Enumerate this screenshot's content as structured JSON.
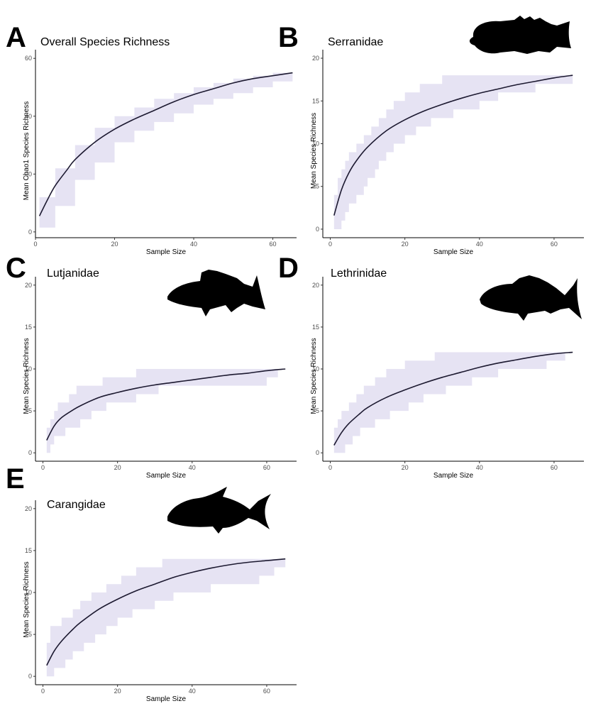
{
  "figure": {
    "colors": {
      "ribbon": "#e6e3f3",
      "line": "#1c1930",
      "axis": "#000000",
      "tick_text": "#4d4d4d"
    },
    "icons": [
      "grouper-silhouette-icon",
      "snapper-silhouette-icon",
      "emperor-silhouette-icon",
      "trevally-silhouette-icon"
    ]
  },
  "chart_data": [
    {
      "panel": "A",
      "title": "Overall  Species Richness",
      "type": "line",
      "xlabel": "Sample Size",
      "ylabel": "Mean Chao1 Species Richness",
      "xlim": [
        0,
        66
      ],
      "ylim": [
        -2,
        63
      ],
      "xticks": [
        0,
        20,
        40,
        60
      ],
      "yticks": [
        0,
        20,
        40,
        60
      ],
      "grid": false,
      "icon": "",
      "series": [
        {
          "values": [
            [
              1,
              5.5
            ],
            [
              3,
              11
            ],
            [
              5,
              16
            ],
            [
              8,
              21.5
            ],
            [
              10,
              25
            ],
            [
              15,
              31
            ],
            [
              20,
              35.5
            ],
            [
              25,
              39
            ],
            [
              30,
              42
            ],
            [
              35,
              45
            ],
            [
              40,
              47.5
            ],
            [
              45,
              49.5
            ],
            [
              50,
              51.5
            ],
            [
              55,
              53
            ],
            [
              60,
              54
            ],
            [
              65,
              55
            ]
          ]
        }
      ],
      "ribbon": {
        "upper": [
          [
            1,
            12
          ],
          [
            5,
            22
          ],
          [
            10,
            30
          ],
          [
            15,
            36
          ],
          [
            20,
            40
          ],
          [
            25,
            43
          ],
          [
            30,
            46
          ],
          [
            35,
            48
          ],
          [
            40,
            50
          ],
          [
            45,
            51.5
          ],
          [
            50,
            53
          ],
          [
            55,
            54
          ],
          [
            60,
            55
          ],
          [
            65,
            56
          ]
        ],
        "lower": [
          [
            1,
            1.5
          ],
          [
            5,
            9
          ],
          [
            10,
            18
          ],
          [
            15,
            24
          ],
          [
            20,
            31
          ],
          [
            25,
            35
          ],
          [
            30,
            38
          ],
          [
            35,
            41
          ],
          [
            40,
            44
          ],
          [
            45,
            46
          ],
          [
            50,
            48
          ],
          [
            55,
            50
          ],
          [
            60,
            52
          ],
          [
            65,
            54
          ]
        ]
      }
    },
    {
      "panel": "B",
      "title": "Serranidae",
      "type": "line",
      "xlabel": "Sample Size",
      "ylabel": "Mean Species Richness",
      "xlim": [
        -2,
        68
      ],
      "ylim": [
        -1,
        21
      ],
      "xticks": [
        0,
        20,
        40,
        60
      ],
      "yticks": [
        0,
        5,
        10,
        15,
        20
      ],
      "grid": false,
      "icon": "grouper-silhouette-icon",
      "series": [
        {
          "values": [
            [
              1,
              1.6
            ],
            [
              3,
              4.6
            ],
            [
              5,
              6.6
            ],
            [
              7,
              8
            ],
            [
              10,
              9.6
            ],
            [
              15,
              11.5
            ],
            [
              20,
              12.8
            ],
            [
              25,
              13.8
            ],
            [
              30,
              14.6
            ],
            [
              35,
              15.3
            ],
            [
              40,
              15.9
            ],
            [
              45,
              16.4
            ],
            [
              50,
              16.9
            ],
            [
              55,
              17.3
            ],
            [
              60,
              17.7
            ],
            [
              65,
              18
            ]
          ]
        }
      ],
      "ribbon": {
        "upper": [
          [
            1,
            4
          ],
          [
            2,
            6
          ],
          [
            3,
            7
          ],
          [
            4,
            8
          ],
          [
            5,
            9
          ],
          [
            7,
            10
          ],
          [
            9,
            11
          ],
          [
            11,
            12
          ],
          [
            13,
            13
          ],
          [
            15,
            14
          ],
          [
            17,
            15
          ],
          [
            20,
            16
          ],
          [
            24,
            17
          ],
          [
            30,
            18
          ],
          [
            65,
            18
          ]
        ],
        "lower": [
          [
            1,
            0
          ],
          [
            3,
            1
          ],
          [
            4,
            2
          ],
          [
            5,
            3
          ],
          [
            7,
            4
          ],
          [
            9,
            5
          ],
          [
            10,
            6
          ],
          [
            12,
            7
          ],
          [
            13,
            8
          ],
          [
            15,
            9
          ],
          [
            17,
            10
          ],
          [
            20,
            11
          ],
          [
            23,
            12
          ],
          [
            27,
            13
          ],
          [
            33,
            14
          ],
          [
            40,
            15
          ],
          [
            45,
            16
          ],
          [
            55,
            17
          ],
          [
            63,
            17
          ],
          [
            65,
            18
          ]
        ]
      }
    },
    {
      "panel": "C",
      "title": "Lutjanidae",
      "type": "line",
      "xlabel": "Sample Size",
      "ylabel": "Mean Species Richness",
      "xlim": [
        -2,
        68
      ],
      "ylim": [
        -1,
        21
      ],
      "xticks": [
        0,
        20,
        40,
        60
      ],
      "yticks": [
        0,
        5,
        10,
        15,
        20
      ],
      "grid": false,
      "icon": "snapper-silhouette-icon",
      "series": [
        {
          "values": [
            [
              1,
              1.5
            ],
            [
              3,
              3.2
            ],
            [
              5,
              4.2
            ],
            [
              8,
              5.1
            ],
            [
              10,
              5.6
            ],
            [
              15,
              6.6
            ],
            [
              20,
              7.2
            ],
            [
              25,
              7.7
            ],
            [
              30,
              8.1
            ],
            [
              35,
              8.4
            ],
            [
              40,
              8.7
            ],
            [
              45,
              9
            ],
            [
              50,
              9.3
            ],
            [
              55,
              9.5
            ],
            [
              60,
              9.8
            ],
            [
              65,
              10
            ]
          ]
        }
      ],
      "ribbon": {
        "upper": [
          [
            1,
            3
          ],
          [
            2,
            4
          ],
          [
            3,
            5
          ],
          [
            4,
            6
          ],
          [
            7,
            7
          ],
          [
            9,
            8
          ],
          [
            16,
            9
          ],
          [
            25,
            10
          ],
          [
            65,
            10
          ]
        ],
        "lower": [
          [
            1,
            0
          ],
          [
            2,
            1
          ],
          [
            3,
            2
          ],
          [
            6,
            3
          ],
          [
            10,
            4
          ],
          [
            13,
            5
          ],
          [
            17,
            6
          ],
          [
            25,
            7
          ],
          [
            31,
            8
          ],
          [
            60,
            9
          ],
          [
            63,
            10
          ],
          [
            65,
            10
          ]
        ]
      }
    },
    {
      "panel": "D",
      "title": "Lethrinidae",
      "type": "line",
      "xlabel": "Sample Size",
      "ylabel": "Mean Species Richness",
      "xlim": [
        -2,
        68
      ],
      "ylim": [
        -1,
        21
      ],
      "xticks": [
        0,
        20,
        40,
        60
      ],
      "yticks": [
        0,
        5,
        10,
        15,
        20
      ],
      "grid": false,
      "icon": "emperor-silhouette-icon",
      "series": [
        {
          "values": [
            [
              1,
              0.9
            ],
            [
              3,
              2.4
            ],
            [
              5,
              3.5
            ],
            [
              8,
              4.7
            ],
            [
              10,
              5.4
            ],
            [
              15,
              6.6
            ],
            [
              20,
              7.5
            ],
            [
              25,
              8.3
            ],
            [
              30,
              9
            ],
            [
              35,
              9.6
            ],
            [
              40,
              10.2
            ],
            [
              45,
              10.7
            ],
            [
              50,
              11.1
            ],
            [
              55,
              11.5
            ],
            [
              60,
              11.8
            ],
            [
              65,
              12
            ]
          ]
        }
      ],
      "ribbon": {
        "upper": [
          [
            1,
            3
          ],
          [
            2,
            4
          ],
          [
            3,
            5
          ],
          [
            5,
            6
          ],
          [
            7,
            7
          ],
          [
            9,
            8
          ],
          [
            12,
            9
          ],
          [
            15,
            10
          ],
          [
            20,
            11
          ],
          [
            28,
            12
          ],
          [
            65,
            12
          ]
        ],
        "lower": [
          [
            1,
            0
          ],
          [
            4,
            1
          ],
          [
            6,
            2
          ],
          [
            8,
            3
          ],
          [
            12,
            4
          ],
          [
            16,
            5
          ],
          [
            21,
            6
          ],
          [
            25,
            7
          ],
          [
            31,
            8
          ],
          [
            38,
            9
          ],
          [
            45,
            10
          ],
          [
            58,
            11
          ],
          [
            63,
            12
          ],
          [
            65,
            12
          ]
        ]
      }
    },
    {
      "panel": "E",
      "title": "Carangidae",
      "type": "line",
      "xlabel": "Sample Size",
      "ylabel": "Mean Species Richness",
      "xlim": [
        -2,
        68
      ],
      "ylim": [
        -1,
        21
      ],
      "xticks": [
        0,
        20,
        40,
        60
      ],
      "yticks": [
        0,
        5,
        10,
        15,
        20
      ],
      "grid": false,
      "icon": "trevally-silhouette-icon",
      "series": [
        {
          "values": [
            [
              1,
              1.3
            ],
            [
              3,
              3
            ],
            [
              5,
              4.2
            ],
            [
              8,
              5.6
            ],
            [
              10,
              6.4
            ],
            [
              15,
              8
            ],
            [
              20,
              9.2
            ],
            [
              25,
              10.2
            ],
            [
              30,
              11
            ],
            [
              35,
              11.8
            ],
            [
              40,
              12.4
            ],
            [
              45,
              12.9
            ],
            [
              50,
              13.3
            ],
            [
              55,
              13.6
            ],
            [
              60,
              13.8
            ],
            [
              65,
              14
            ]
          ]
        }
      ],
      "ribbon": {
        "upper": [
          [
            1,
            4
          ],
          [
            2,
            6
          ],
          [
            5,
            7
          ],
          [
            8,
            8
          ],
          [
            10,
            9
          ],
          [
            13,
            10
          ],
          [
            17,
            11
          ],
          [
            21,
            12
          ],
          [
            25,
            13
          ],
          [
            32,
            14
          ],
          [
            65,
            14
          ]
        ],
        "lower": [
          [
            1,
            0
          ],
          [
            3,
            1
          ],
          [
            6,
            2
          ],
          [
            8,
            3
          ],
          [
            11,
            4
          ],
          [
            14,
            5
          ],
          [
            17,
            6
          ],
          [
            20,
            7
          ],
          [
            24,
            8
          ],
          [
            30,
            9
          ],
          [
            35,
            10
          ],
          [
            45,
            11
          ],
          [
            58,
            12
          ],
          [
            62,
            13
          ],
          [
            65,
            14
          ]
        ]
      }
    }
  ]
}
